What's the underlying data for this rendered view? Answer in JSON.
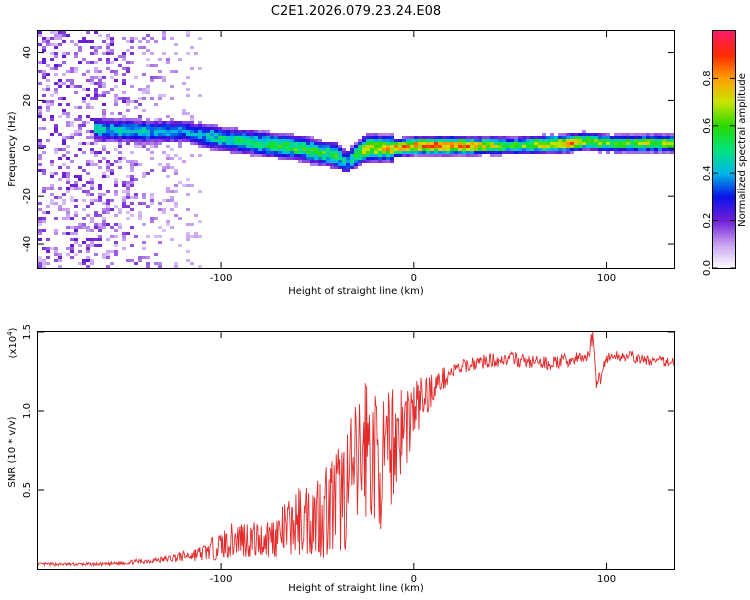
{
  "title": "C2E1.2026.079.23.24.E08",
  "chart_data": [
    {
      "type": "heatmap",
      "xlabel": "Height of straight line (km)",
      "ylabel": "Frequency (Hz)",
      "xlim": [
        -195,
        135
      ],
      "ylim": [
        -50,
        49
      ],
      "x_ticks": [
        -100,
        0,
        100
      ],
      "x_tick_labels": [
        "-100",
        "0",
        "100"
      ],
      "y_ticks": [
        -40,
        -20,
        0,
        20,
        40
      ],
      "y_tick_labels": [
        "-40",
        "-20",
        "0",
        "20",
        "40"
      ],
      "colorbar": {
        "label": "Normalized spectral amplitude",
        "range": [
          0,
          1
        ],
        "ticks": [
          0.0,
          0.2,
          0.4,
          0.6,
          0.8
        ],
        "tick_labels": [
          "0.0",
          "0.2",
          "0.4",
          "0.6",
          "0.8"
        ]
      },
      "ridge": {
        "description_points_x": [
          -165,
          -140,
          -120,
          -100,
          -80,
          -60,
          -40,
          -35,
          -25,
          -10,
          0,
          20,
          50,
          80,
          90,
          100,
          135
        ],
        "freq_hz": [
          8,
          7,
          7,
          4,
          2,
          0,
          -3,
          -6,
          0,
          0,
          1,
          1,
          1,
          2,
          3,
          2,
          2
        ],
        "peak_amplitude": [
          0.45,
          0.45,
          0.4,
          0.5,
          0.55,
          0.6,
          0.6,
          0.4,
          0.75,
          0.8,
          0.85,
          0.95,
          0.6,
          0.85,
          0.7,
          0.65,
          0.7
        ]
      },
      "noise_region_x": [
        -195,
        -110
      ]
    },
    {
      "type": "line",
      "xlabel": "Height of straight line (km)",
      "ylabel": "SNR (10 * v/v)",
      "y_multiplier": "(x10",
      "y_multiplier_exp": "4",
      "y_multiplier_close": ")",
      "xlim": [
        -195,
        135
      ],
      "ylim": [
        0,
        15000
      ],
      "x_ticks": [
        -100,
        0,
        100
      ],
      "x_tick_labels": [
        "-100",
        "0",
        "100"
      ],
      "y_ticks": [
        5000,
        10000,
        15000
      ],
      "y_tick_labels": [
        "0.5",
        "1.0",
        "1.5"
      ],
      "series": [
        {
          "name": "SNR",
          "color": "#e32b2b",
          "x": [
            -195,
            -160,
            -130,
            -110,
            -100,
            -90,
            -80,
            -70,
            -60,
            -50,
            -40,
            -30,
            -25,
            -20,
            -15,
            -10,
            -5,
            0,
            10,
            20,
            30,
            40,
            50,
            60,
            70,
            80,
            90,
            93,
            95,
            100,
            110,
            120,
            135
          ],
          "values": [
            300,
            300,
            600,
            1000,
            1500,
            2000,
            1800,
            2200,
            3000,
            3500,
            4200,
            6000,
            8000,
            7000,
            6500,
            8500,
            9000,
            10000,
            11500,
            12500,
            13000,
            13200,
            13300,
            13100,
            13000,
            13200,
            13400,
            14800,
            11500,
            13400,
            13500,
            13200,
            13100
          ],
          "noise_amplitude": [
            100,
            100,
            200,
            500,
            900,
            1300,
            1200,
            1500,
            2200,
            2800,
            3500,
            4500,
            5000,
            4500,
            4000,
            3800,
            3000,
            2200,
            1000,
            500,
            450,
            450,
            450,
            450,
            450,
            450,
            450,
            600,
            600,
            400,
            350,
            350,
            300
          ]
        }
      ]
    }
  ]
}
